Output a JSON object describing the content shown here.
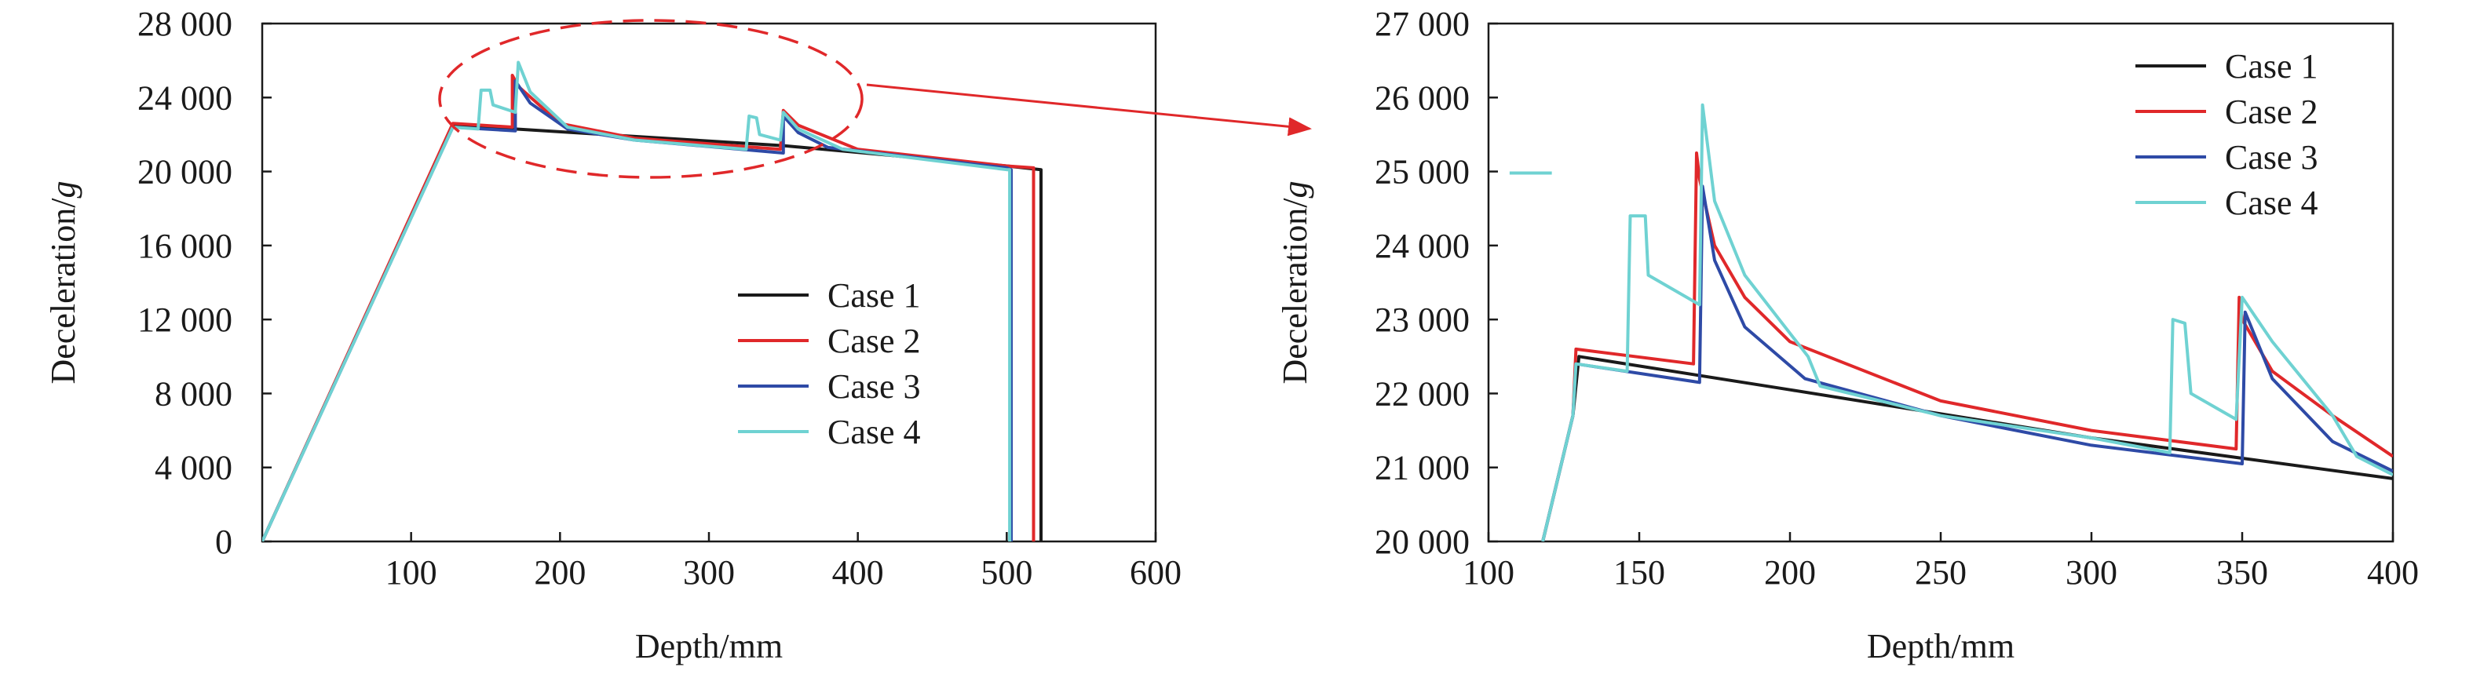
{
  "colors": {
    "Case 1": "#1a1a1a",
    "Case 2": "#e0282a",
    "Case 3": "#2e4aa6",
    "Case 4": "#6fd2d2",
    "annotation": "#e0282a"
  },
  "chart_data": [
    {
      "type": "line",
      "xlabel": "Depth/mm",
      "ylabel": "Deceleration/g",
      "xlim": [
        0,
        600
      ],
      "ylim": [
        0,
        28000
      ],
      "xticks": [
        100,
        200,
        300,
        400,
        500,
        600
      ],
      "yticks": [
        0,
        4000,
        8000,
        12000,
        16000,
        20000,
        24000,
        28000
      ],
      "xtick_labels": [
        "100",
        "200",
        "300",
        "400",
        "500",
        "600"
      ],
      "ytick_labels": [
        "0",
        "4 000",
        "8 000",
        "12 000",
        "16 000",
        "20 000",
        "24 000",
        "28 000"
      ],
      "legend": "center-right",
      "legend_entries": [
        "Case 1",
        "Case 2",
        "Case 3",
        "Case 4"
      ],
      "series": [
        {
          "name": "Case 1",
          "x": [
            0,
            128,
            140,
            170,
            350,
            500,
            523,
            523
          ],
          "y": [
            0,
            22500,
            22400,
            22300,
            21400,
            20300,
            20100,
            0
          ]
        },
        {
          "name": "Case 2",
          "x": [
            0,
            128,
            168,
            168,
            172,
            200,
            250,
            300,
            348,
            350,
            360,
            400,
            500,
            518,
            518
          ],
          "y": [
            0,
            22600,
            22400,
            25200,
            24600,
            22600,
            21800,
            21500,
            21200,
            23300,
            22500,
            21200,
            20300,
            20200,
            0
          ]
        },
        {
          "name": "Case 3",
          "x": [
            0,
            128,
            170,
            170,
            180,
            205,
            250,
            350,
            350,
            360,
            380,
            500,
            503,
            503
          ],
          "y": [
            0,
            22400,
            22200,
            24900,
            23700,
            22300,
            21700,
            21000,
            23000,
            22100,
            21300,
            20200,
            20100,
            0
          ]
        },
        {
          "name": "Case 4",
          "x": [
            0,
            128,
            145,
            147,
            153,
            155,
            170,
            172,
            180,
            205,
            250,
            325,
            327,
            332,
            334,
            348,
            350,
            360,
            390,
            500,
            502,
            502
          ],
          "y": [
            0,
            22400,
            22300,
            24400,
            24400,
            23600,
            23200,
            25900,
            24300,
            22400,
            21700,
            21200,
            23000,
            22900,
            22000,
            21700,
            23200,
            22300,
            21200,
            20100,
            20100,
            0
          ]
        }
      ]
    },
    {
      "type": "line",
      "xlabel": "Depth/mm",
      "ylabel": "Deceleration/g",
      "xlim": [
        100,
        400
      ],
      "ylim": [
        20000,
        27000
      ],
      "xticks": [
        100,
        150,
        200,
        250,
        300,
        350,
        400
      ],
      "yticks": [
        20000,
        21000,
        22000,
        23000,
        24000,
        25000,
        26000,
        27000
      ],
      "xtick_labels": [
        "100",
        "150",
        "200",
        "250",
        "300",
        "350",
        "400"
      ],
      "ytick_labels": [
        "20 000",
        "21 000",
        "22 000",
        "23 000",
        "24 000",
        "25 000",
        "26 000",
        "27 000"
      ],
      "legend": "top-right",
      "legend_entries": [
        "Case 1",
        "Case 2",
        "Case 3",
        "Case 4"
      ],
      "series": [
        {
          "name": "Case 1",
          "x": [
            118,
            128,
            130,
            200,
            300,
            400
          ],
          "y": [
            20000,
            21700,
            22500,
            22050,
            21400,
            20850
          ]
        },
        {
          "name": "Case 2",
          "x": [
            118,
            128,
            129,
            168,
            169,
            170,
            175,
            185,
            200,
            250,
            300,
            348,
            349,
            350,
            360,
            380,
            400
          ],
          "y": [
            20000,
            21700,
            22600,
            22400,
            25250,
            24900,
            24000,
            23300,
            22700,
            21900,
            21500,
            21250,
            23300,
            23000,
            22300,
            21700,
            21150
          ]
        },
        {
          "name": "Case 3",
          "x": [
            118,
            128,
            129,
            170,
            171,
            175,
            185,
            205,
            250,
            300,
            350,
            351,
            360,
            380,
            400
          ],
          "y": [
            20000,
            21700,
            22400,
            22150,
            24800,
            23800,
            22900,
            22200,
            21700,
            21300,
            21050,
            23100,
            22200,
            21350,
            20950
          ]
        },
        {
          "name": "Case 4",
          "x": [
            118,
            128,
            129,
            146,
            147,
            152,
            153,
            170,
            171,
            175,
            185,
            206,
            210,
            250,
            300,
            326,
            327,
            331,
            333,
            348,
            350,
            360,
            380,
            388,
            400
          ],
          "y": [
            20000,
            21700,
            22400,
            22300,
            24400,
            24400,
            23600,
            23200,
            25900,
            24600,
            23600,
            22500,
            22100,
            21700,
            21400,
            21200,
            23000,
            22950,
            22000,
            21650,
            23300,
            22700,
            21700,
            21150,
            20900
          ]
        }
      ]
    }
  ]
}
